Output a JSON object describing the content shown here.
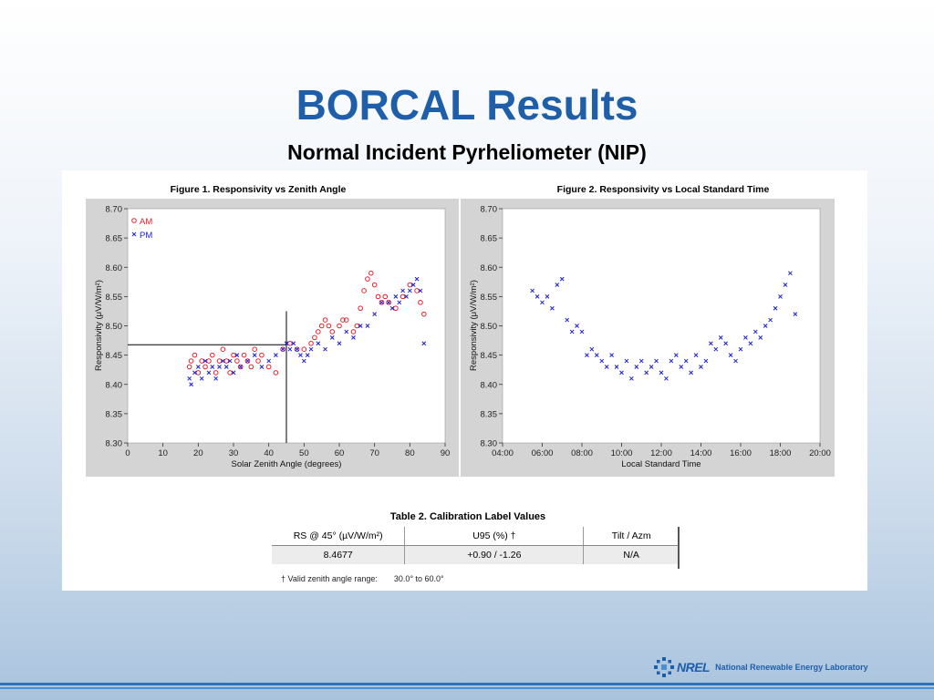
{
  "slide": {
    "title": "BORCAL Results",
    "subtitle": "Normal Incident Pyrheliometer (NIP)"
  },
  "colors": {
    "title": "#1f5ea8",
    "am_series": "#e8202a",
    "pm_series": "#1c1cd8",
    "plot_frame": "#d4d4d4"
  },
  "chart_data": [
    {
      "type": "scatter",
      "title": "Figure 1.  Responsivity vs Zenith Angle",
      "xlabel": "Solar Zenith Angle (degrees)",
      "ylabel": "Responsivity (μV/W/m²)",
      "xlim": [
        0,
        90
      ],
      "ylim": [
        8.3,
        8.7
      ],
      "xticks": [
        "0",
        "10",
        "20",
        "30",
        "40",
        "50",
        "60",
        "70",
        "80",
        "90"
      ],
      "yticks": [
        "8.70",
        "8.65",
        "8.60",
        "8.55",
        "8.50",
        "8.45",
        "8.40",
        "8.35",
        "8.30"
      ],
      "legend": "top-left",
      "reference_point": {
        "x": 45,
        "y": 8.4677
      },
      "series": [
        {
          "name": "AM",
          "marker": "o",
          "x": [
            17.5,
            18,
            19,
            20,
            21,
            22,
            23,
            24,
            25,
            26,
            27,
            28,
            29,
            30,
            31,
            32,
            33,
            34,
            35,
            36,
            37,
            38,
            40,
            42,
            44,
            46,
            48,
            50,
            52,
            53,
            54,
            55,
            56,
            57,
            58,
            60,
            61,
            62,
            64,
            65,
            66,
            67,
            68,
            69,
            70,
            71,
            72,
            73,
            74,
            76,
            78,
            80,
            82,
            83,
            84
          ],
          "y": [
            8.43,
            8.44,
            8.45,
            8.42,
            8.44,
            8.43,
            8.44,
            8.45,
            8.42,
            8.44,
            8.46,
            8.44,
            8.42,
            8.45,
            8.44,
            8.43,
            8.45,
            8.44,
            8.43,
            8.46,
            8.44,
            8.45,
            8.43,
            8.42,
            8.46,
            8.47,
            8.46,
            8.46,
            8.47,
            8.48,
            8.49,
            8.5,
            8.51,
            8.5,
            8.49,
            8.5,
            8.51,
            8.51,
            8.49,
            8.5,
            8.53,
            8.56,
            8.58,
            8.59,
            8.57,
            8.55,
            8.54,
            8.55,
            8.54,
            8.53,
            8.55,
            8.57,
            8.56,
            8.54,
            8.52
          ]
        },
        {
          "name": "PM",
          "marker": "x",
          "x": [
            17.5,
            18,
            19,
            20,
            21,
            22,
            23,
            24,
            25,
            26,
            27,
            28,
            29,
            30,
            31,
            32,
            34,
            36,
            38,
            40,
            42,
            44,
            45,
            46,
            47,
            48,
            49,
            50,
            51,
            52,
            54,
            56,
            58,
            60,
            62,
            64,
            66,
            68,
            70,
            72,
            74,
            75,
            76,
            77,
            78,
            79,
            80,
            81,
            82,
            83,
            84
          ],
          "y": [
            8.41,
            8.4,
            8.42,
            8.43,
            8.41,
            8.44,
            8.42,
            8.43,
            8.41,
            8.43,
            8.44,
            8.43,
            8.44,
            8.42,
            8.45,
            8.43,
            8.44,
            8.45,
            8.43,
            8.44,
            8.45,
            8.46,
            8.47,
            8.46,
            8.47,
            8.46,
            8.45,
            8.44,
            8.45,
            8.46,
            8.47,
            8.46,
            8.48,
            8.47,
            8.49,
            8.48,
            8.5,
            8.5,
            8.52,
            8.54,
            8.54,
            8.53,
            8.55,
            8.54,
            8.56,
            8.55,
            8.56,
            8.57,
            8.58,
            8.56,
            8.47
          ]
        }
      ]
    },
    {
      "type": "scatter",
      "title": "Figure 2.  Responsivity vs Local Standard Time",
      "xlabel": "Local Standard Time",
      "ylabel": "Responsivity (μV/W/m²)",
      "xlim": [
        "04:00",
        "20:00"
      ],
      "ylim": [
        8.3,
        8.7
      ],
      "xticks": [
        "04:00",
        "06:00",
        "08:00",
        "10:00",
        "12:00",
        "14:00",
        "16:00",
        "18:00",
        "20:00"
      ],
      "yticks": [
        "8.70",
        "8.65",
        "8.60",
        "8.55",
        "8.50",
        "8.45",
        "8.40",
        "8.35",
        "8.30"
      ],
      "series": [
        {
          "name": "PM",
          "marker": "x",
          "x": [
            "05:30",
            "05:45",
            "06:00",
            "06:15",
            "06:30",
            "06:45",
            "07:00",
            "07:15",
            "07:30",
            "07:45",
            "08:00",
            "08:15",
            "08:30",
            "08:45",
            "09:00",
            "09:15",
            "09:30",
            "09:45",
            "10:00",
            "10:15",
            "10:30",
            "10:45",
            "11:00",
            "11:15",
            "11:30",
            "11:45",
            "12:00",
            "12:15",
            "12:30",
            "12:45",
            "13:00",
            "13:15",
            "13:30",
            "13:45",
            "14:00",
            "14:15",
            "14:30",
            "14:45",
            "15:00",
            "15:15",
            "15:30",
            "15:45",
            "16:00",
            "16:15",
            "16:30",
            "16:45",
            "17:00",
            "17:15",
            "17:30",
            "17:45",
            "18:00",
            "18:15",
            "18:30",
            "18:45"
          ],
          "y": [
            8.56,
            8.55,
            8.54,
            8.55,
            8.53,
            8.57,
            8.58,
            8.51,
            8.49,
            8.5,
            8.49,
            8.45,
            8.46,
            8.45,
            8.44,
            8.43,
            8.45,
            8.43,
            8.42,
            8.44,
            8.41,
            8.43,
            8.44,
            8.42,
            8.43,
            8.44,
            8.42,
            8.41,
            8.44,
            8.45,
            8.43,
            8.44,
            8.42,
            8.45,
            8.43,
            8.44,
            8.47,
            8.46,
            8.48,
            8.47,
            8.45,
            8.44,
            8.46,
            8.48,
            8.47,
            8.49,
            8.48,
            8.5,
            8.51,
            8.53,
            8.55,
            8.57,
            8.59,
            8.52
          ]
        }
      ]
    }
  ],
  "table": {
    "title": "Table 2.  Calibration Label Values",
    "headers": [
      "RS @ 45° (µV/W/m²)",
      "U95 (%) †",
      "Tilt / Azm"
    ],
    "rows": [
      [
        "8.4677",
        "+0.90 / -1.26",
        "N/A"
      ]
    ],
    "footnote_label": "† Valid zenith angle range:",
    "footnote_value": "30.0° to 60.0°"
  },
  "footer": {
    "logo_text": "NREL",
    "org_name": "National Renewable Energy Laboratory"
  }
}
